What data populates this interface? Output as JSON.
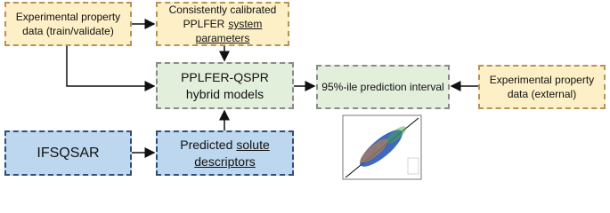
{
  "nodes": [
    {
      "lines": [
        [
          "Experimental property"
        ],
        [
          "data (train/validate)"
        ]
      ]
    },
    {
      "lines": [
        [
          "Consistently calibrated"
        ],
        [
          "PPLFER",
          "system parameters"
        ]
      ]
    },
    {
      "lines": [
        [
          "PPLFER-QSPR"
        ],
        [
          "hybrid models"
        ]
      ]
    },
    {
      "lines": [
        [
          "95%-ile prediction interval"
        ]
      ]
    },
    {
      "lines": [
        [
          "Experimental property"
        ],
        [
          "data (external)"
        ]
      ]
    },
    {
      "lines": [
        [
          "IFSQSAR"
        ]
      ]
    },
    {
      "lines": [
        [
          "Predicted",
          "solute"
        ],
        [
          "descriptors"
        ]
      ]
    }
  ]
}
